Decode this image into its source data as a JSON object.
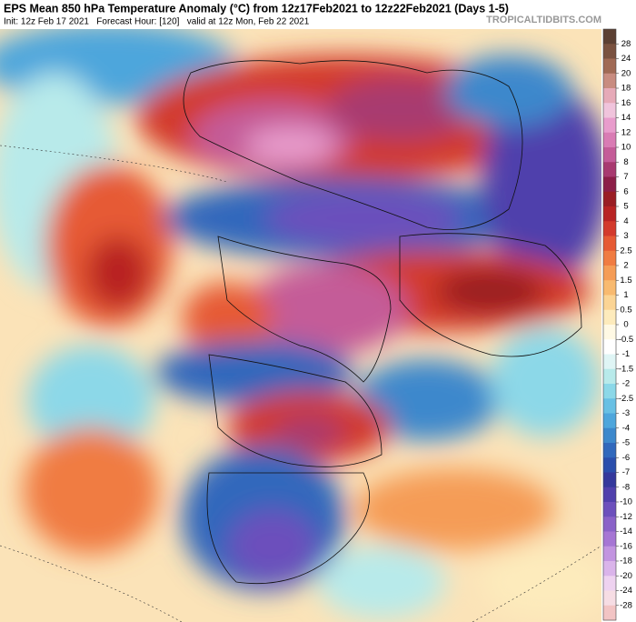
{
  "header": {
    "title": "EPS Mean 850 hPa Temperature Anomaly (°C) from 12z17Feb2021 to 12z22Feb2021 (Days 1-5)",
    "subtitle": "Init: 12z Feb 17 2021   Forecast Hour: [120]   valid at 12z Mon, Feb 22 2021",
    "source": "TROPICALTIDBITS.COM"
  },
  "colorbar": {
    "ticks": [
      28,
      24,
      20,
      18,
      16,
      14,
      12,
      10,
      8,
      7,
      6,
      5,
      4,
      3,
      2.5,
      2,
      1.5,
      1,
      0.5,
      0,
      -0.5,
      -1,
      -1.5,
      -2,
      -2.5,
      -3,
      -4,
      -5,
      -6,
      -7,
      -8,
      -10,
      -12,
      -14,
      -16,
      -18,
      -20,
      -24,
      -28
    ],
    "colors": [
      "#5c4033",
      "#7a5240",
      "#a06a55",
      "#c88c80",
      "#e6aab8",
      "#f0c4dc",
      "#e89ccc",
      "#d97cb4",
      "#c45c98",
      "#a83a70",
      "#8c1f48",
      "#9a1e24",
      "#b82424",
      "#d33a2c",
      "#e65a34",
      "#f07c42",
      "#f59c56",
      "#f8ba70",
      "#fbd494",
      "#fdebbc",
      "#fff9e4",
      "#ffffff",
      "#dff5f5",
      "#b8eaea",
      "#8cd8e8",
      "#68c0e4",
      "#4ea6dc",
      "#3c88cc",
      "#3068bc",
      "#2a4eac",
      "#34389c",
      "#5040ac",
      "#6c50bc",
      "#8a62c8",
      "#a676d4",
      "#c294e0",
      "#dab4ea",
      "#eed2f0",
      "#f6dde4",
      "#f2c4c4"
    ]
  }
}
